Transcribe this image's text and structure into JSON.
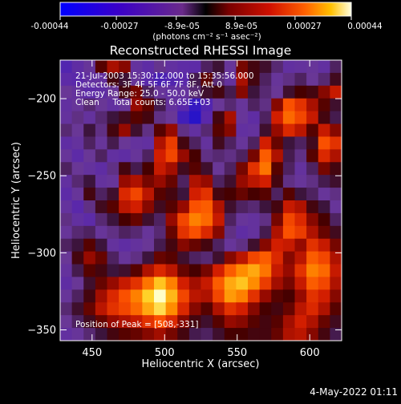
{
  "colorbar": {
    "tick_labels": [
      "-0.00044",
      "-0.00027",
      "-8.9e-05",
      "8.9e-05",
      "0.00027",
      "0.00044"
    ],
    "tick_values": [
      -0.00044,
      -0.00027,
      -8.9e-05,
      8.9e-05,
      0.00027,
      0.00044
    ],
    "range": [
      -0.00044,
      0.00044
    ],
    "unit_label": "(photons cm⁻² s⁻¹ asec⁻²)"
  },
  "chart_data": {
    "type": "heatmap",
    "title": "Reconstructed RHESSI Image",
    "xlabel": "Heliocentric X (arcsec)",
    "ylabel": "Heliocentric Y (arcsec)",
    "xlim": [
      428,
      622
    ],
    "ylim": [
      -357,
      -175
    ],
    "x_ticks": [
      450,
      500,
      550,
      600
    ],
    "y_ticks": [
      -200,
      -250,
      -300,
      -350
    ],
    "peak_position": [
      508,
      -331
    ],
    "grid_cells_x": 24,
    "grid_cells_y": 22,
    "values": [
      [
        0.1,
        0.16,
        0.22,
        0.44,
        0.55,
        0.5,
        0.2,
        0.15,
        0.25,
        0.18,
        0.15,
        0.14,
        0.3,
        0.35,
        0.22,
        0.48,
        0.4,
        0.36,
        0.28,
        0.18,
        0.2,
        0.22,
        0.18,
        0.3
      ],
      [
        0.14,
        0.12,
        0.18,
        0.2,
        0.4,
        0.35,
        0.22,
        0.12,
        0.08,
        0.1,
        0.12,
        0.32,
        0.45,
        0.28,
        0.2,
        0.55,
        0.4,
        0.3,
        0.22,
        0.26,
        0.3,
        0.24,
        0.28,
        0.38
      ],
      [
        0.24,
        0.2,
        0.14,
        0.16,
        0.24,
        0.4,
        0.48,
        0.3,
        0.22,
        0.18,
        0.2,
        0.28,
        0.36,
        0.4,
        0.32,
        0.5,
        0.34,
        0.28,
        0.24,
        0.36,
        0.42,
        0.4,
        0.5,
        0.6
      ],
      [
        0.18,
        0.22,
        0.28,
        0.24,
        0.18,
        0.22,
        0.52,
        0.45,
        0.32,
        0.2,
        0.12,
        0.03,
        0.1,
        0.24,
        0.28,
        0.22,
        0.3,
        0.26,
        0.5,
        0.72,
        0.66,
        0.55,
        0.44,
        0.36
      ],
      [
        0.2,
        0.26,
        0.2,
        0.28,
        0.34,
        0.38,
        0.44,
        0.4,
        0.26,
        0.24,
        0.06,
        0.0,
        0.12,
        0.4,
        0.55,
        0.22,
        0.16,
        0.3,
        0.62,
        0.76,
        0.7,
        0.6,
        0.4,
        0.32
      ],
      [
        0.28,
        0.24,
        0.34,
        0.26,
        0.4,
        0.52,
        0.36,
        0.26,
        0.44,
        0.52,
        0.26,
        0.18,
        0.28,
        0.44,
        0.5,
        0.18,
        0.2,
        0.36,
        0.52,
        0.64,
        0.58,
        0.44,
        0.6,
        0.5
      ],
      [
        0.16,
        0.2,
        0.3,
        0.22,
        0.32,
        0.24,
        0.2,
        0.18,
        0.56,
        0.68,
        0.4,
        0.3,
        0.2,
        0.38,
        0.3,
        0.22,
        0.3,
        0.62,
        0.46,
        0.34,
        0.3,
        0.38,
        0.72,
        0.66
      ],
      [
        0.22,
        0.14,
        0.24,
        0.3,
        0.18,
        0.16,
        0.22,
        0.3,
        0.62,
        0.7,
        0.52,
        0.42,
        0.26,
        0.28,
        0.26,
        0.3,
        0.48,
        0.74,
        0.56,
        0.32,
        0.26,
        0.44,
        0.64,
        0.56
      ],
      [
        0.3,
        0.24,
        0.2,
        0.16,
        0.26,
        0.4,
        0.32,
        0.42,
        0.6,
        0.54,
        0.38,
        0.44,
        0.36,
        0.24,
        0.3,
        0.48,
        0.66,
        0.78,
        0.44,
        0.3,
        0.2,
        0.3,
        0.48,
        0.4
      ],
      [
        0.18,
        0.28,
        0.34,
        0.2,
        0.22,
        0.52,
        0.56,
        0.48,
        0.52,
        0.46,
        0.3,
        0.56,
        0.52,
        0.3,
        0.36,
        0.52,
        0.58,
        0.62,
        0.4,
        0.26,
        0.22,
        0.26,
        0.32,
        0.36
      ],
      [
        0.14,
        0.22,
        0.4,
        0.3,
        0.36,
        0.64,
        0.7,
        0.58,
        0.44,
        0.4,
        0.34,
        0.62,
        0.66,
        0.4,
        0.42,
        0.46,
        0.42,
        0.44,
        0.3,
        0.44,
        0.34,
        0.3,
        0.22,
        0.26
      ],
      [
        0.2,
        0.12,
        0.26,
        0.38,
        0.44,
        0.58,
        0.62,
        0.5,
        0.38,
        0.44,
        0.52,
        0.72,
        0.74,
        0.56,
        0.36,
        0.3,
        0.28,
        0.34,
        0.4,
        0.6,
        0.56,
        0.4,
        0.34,
        0.22
      ],
      [
        0.26,
        0.18,
        0.14,
        0.28,
        0.34,
        0.42,
        0.46,
        0.36,
        0.3,
        0.52,
        0.7,
        0.8,
        0.76,
        0.6,
        0.3,
        0.22,
        0.2,
        0.26,
        0.48,
        0.7,
        0.64,
        0.5,
        0.42,
        0.3
      ],
      [
        0.22,
        0.28,
        0.3,
        0.22,
        0.26,
        0.3,
        0.28,
        0.22,
        0.28,
        0.46,
        0.66,
        0.72,
        0.64,
        0.5,
        0.26,
        0.16,
        0.2,
        0.32,
        0.56,
        0.72,
        0.68,
        0.56,
        0.46,
        0.38
      ],
      [
        0.3,
        0.34,
        0.44,
        0.34,
        0.2,
        0.16,
        0.2,
        0.24,
        0.32,
        0.4,
        0.5,
        0.46,
        0.4,
        0.3,
        0.22,
        0.26,
        0.36,
        0.5,
        0.62,
        0.6,
        0.52,
        0.66,
        0.6,
        0.48
      ],
      [
        0.24,
        0.4,
        0.52,
        0.46,
        0.3,
        0.22,
        0.26,
        0.34,
        0.46,
        0.44,
        0.36,
        0.3,
        0.28,
        0.36,
        0.5,
        0.58,
        0.7,
        0.74,
        0.64,
        0.5,
        0.58,
        0.74,
        0.7,
        0.56
      ],
      [
        0.2,
        0.32,
        0.44,
        0.4,
        0.34,
        0.36,
        0.44,
        0.56,
        0.64,
        0.58,
        0.46,
        0.42,
        0.48,
        0.62,
        0.74,
        0.82,
        0.86,
        0.78,
        0.6,
        0.52,
        0.66,
        0.8,
        0.76,
        0.6
      ],
      [
        0.16,
        0.24,
        0.36,
        0.46,
        0.52,
        0.6,
        0.66,
        0.78,
        0.9,
        0.8,
        0.62,
        0.54,
        0.6,
        0.74,
        0.86,
        0.9,
        0.82,
        0.68,
        0.54,
        0.48,
        0.6,
        0.74,
        0.7,
        0.56
      ],
      [
        0.22,
        0.3,
        0.4,
        0.54,
        0.64,
        0.72,
        0.8,
        0.92,
        1.0,
        0.88,
        0.7,
        0.58,
        0.56,
        0.7,
        0.84,
        0.8,
        0.66,
        0.52,
        0.44,
        0.42,
        0.52,
        0.66,
        0.62,
        0.5
      ],
      [
        0.28,
        0.36,
        0.46,
        0.58,
        0.66,
        0.7,
        0.76,
        0.86,
        0.94,
        0.82,
        0.64,
        0.5,
        0.44,
        0.56,
        0.66,
        0.62,
        0.5,
        0.42,
        0.4,
        0.46,
        0.58,
        0.64,
        0.56,
        0.44
      ],
      [
        0.24,
        0.3,
        0.38,
        0.46,
        0.52,
        0.56,
        0.6,
        0.66,
        0.72,
        0.64,
        0.5,
        0.4,
        0.36,
        0.44,
        0.52,
        0.5,
        0.44,
        0.4,
        0.44,
        0.54,
        0.62,
        0.56,
        0.46,
        0.38
      ],
      [
        0.18,
        0.22,
        0.28,
        0.34,
        0.4,
        0.44,
        0.46,
        0.5,
        0.54,
        0.48,
        0.4,
        0.32,
        0.3,
        0.36,
        0.42,
        0.42,
        0.4,
        0.4,
        0.46,
        0.56,
        0.58,
        0.5,
        0.4,
        0.32
      ]
    ]
  },
  "overlay": {
    "line1": "21-Jul-2003 15:30:12.000 to 15:35:56.000",
    "line2": "Detectors: 3F 4F 5F 6F 7F 8F, Att 0",
    "line3": "Energy Range: 25.0 - 50.0 keV",
    "line4": "Clean     Total counts: 6.65E+03",
    "peak_text": "Position of Peak = [508,-331]"
  },
  "footer": {
    "timestamp": "4-May-2022 01:11"
  }
}
